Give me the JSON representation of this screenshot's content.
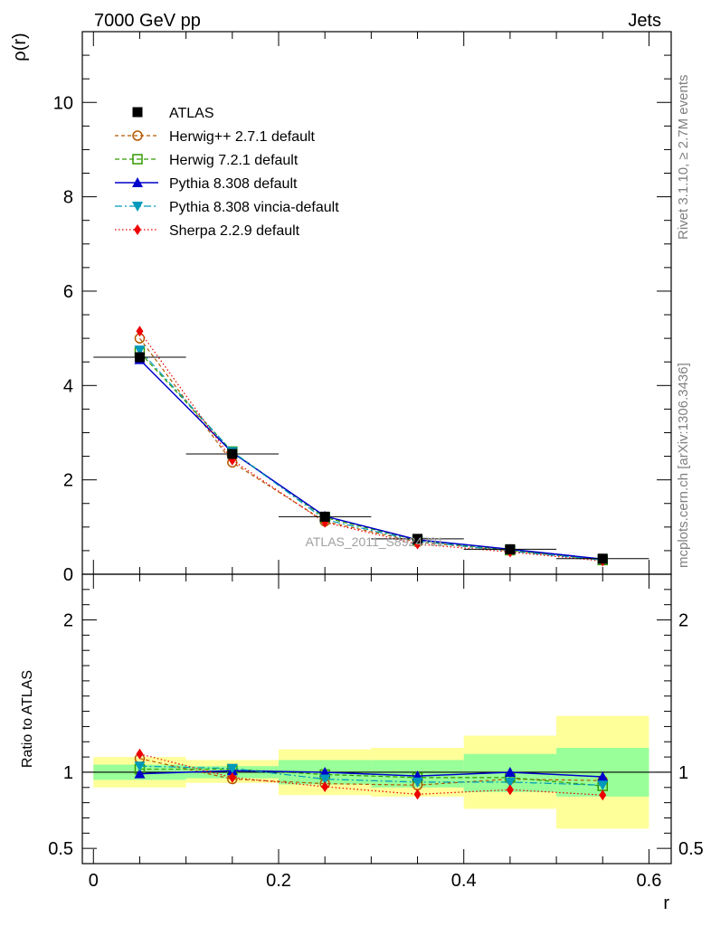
{
  "header": {
    "left": "7000 GeV pp",
    "right": "Jets"
  },
  "side_labels": {
    "rivet": "Rivet 3.1.10, ≥ 2.7M events",
    "mcplots": "mcplots.cern.ch [arXiv:1306.3436]"
  },
  "watermark": "ATLAS_2011_S8924791",
  "colors": {
    "atlas": "#000000",
    "herwigpp": "#b35900",
    "herwig7": "#339900",
    "pythia": "#0000cc",
    "vincia": "#0099bb",
    "sherpa": "#ee0000",
    "band_inner": "#99ff99",
    "band_outer": "#ffff99"
  },
  "chart_data": [
    {
      "type": "line",
      "panel": "main",
      "ylabel": "ρ(r)",
      "ylim": [
        0,
        11.5
      ],
      "yticks": [
        0,
        2,
        4,
        6,
        8,
        10
      ],
      "ytick_labels": [
        "0",
        "2",
        "4",
        "6",
        "8",
        "10"
      ],
      "x": [
        0.05,
        0.15,
        0.25,
        0.35,
        0.45,
        0.55
      ],
      "bin_edges": [
        0,
        0.1,
        0.2,
        0.3,
        0.4,
        0.5,
        0.6
      ],
      "legend_position": "top-left",
      "series": [
        {
          "name": "ATLAS",
          "key": "atlas",
          "values": [
            4.6,
            2.55,
            1.22,
            0.75,
            0.53,
            0.33
          ]
        },
        {
          "name": "Herwig++ 2.7.1 default",
          "key": "herwigpp",
          "values": [
            5.0,
            2.37,
            1.12,
            0.68,
            0.5,
            0.31
          ]
        },
        {
          "name": "Herwig 7.2.1 default",
          "key": "herwig7",
          "values": [
            4.7,
            2.6,
            1.2,
            0.72,
            0.51,
            0.3
          ]
        },
        {
          "name": "Pythia 8.308 default",
          "key": "pythia",
          "values": [
            4.55,
            2.58,
            1.23,
            0.73,
            0.53,
            0.32
          ]
        },
        {
          "name": "Pythia 8.308 vincia-default",
          "key": "vincia",
          "values": [
            4.75,
            2.6,
            1.16,
            0.7,
            0.49,
            0.3
          ]
        },
        {
          "name": "Sherpa 2.2.9 default",
          "key": "sherpa",
          "values": [
            5.15,
            2.42,
            1.1,
            0.64,
            0.47,
            0.28
          ]
        }
      ]
    },
    {
      "type": "line",
      "panel": "ratio",
      "ylabel": "Ratio to ATLAS",
      "xlabel": "r",
      "ylim": [
        0.4,
        2.3
      ],
      "yticks": [
        0.5,
        1,
        2
      ],
      "ytick_labels": [
        "0.5",
        "1",
        "2"
      ],
      "xlim": [
        -0.012,
        0.624
      ],
      "xticks": [
        0,
        0.2,
        0.4,
        0.6
      ],
      "xtick_labels": [
        "0",
        "0.2",
        "0.4",
        "0.6"
      ],
      "x": [
        0.05,
        0.15,
        0.25,
        0.35,
        0.45,
        0.55
      ],
      "bin_edges": [
        0,
        0.1,
        0.2,
        0.3,
        0.4,
        0.5,
        0.6
      ],
      "band_inner": [
        [
          0.95,
          1.05
        ],
        [
          0.96,
          1.04
        ],
        [
          0.92,
          1.08
        ],
        [
          0.9,
          1.08
        ],
        [
          0.87,
          1.12
        ],
        [
          0.84,
          1.16
        ]
      ],
      "band_outer": [
        [
          0.9,
          1.1
        ],
        [
          0.93,
          1.08
        ],
        [
          0.85,
          1.15
        ],
        [
          0.84,
          1.16
        ],
        [
          0.76,
          1.24
        ],
        [
          0.63,
          1.37
        ]
      ],
      "series": [
        {
          "name": "Herwig++ 2.7.1 default",
          "key": "herwigpp",
          "values": [
            1.09,
            0.955,
            0.925,
            0.915,
            0.955,
            0.945
          ]
        },
        {
          "name": "Herwig 7.2.1 default",
          "key": "herwig7",
          "values": [
            1.02,
            1.02,
            0.985,
            0.965,
            0.965,
            0.91
          ]
        },
        {
          "name": "Pythia 8.308 default",
          "key": "pythia",
          "values": [
            0.99,
            1.01,
            1.0,
            0.975,
            1.0,
            0.97
          ]
        },
        {
          "name": "Pythia 8.308 vincia-default",
          "key": "vincia",
          "values": [
            1.04,
            1.025,
            0.955,
            0.935,
            0.935,
            0.915
          ]
        },
        {
          "name": "Sherpa 2.2.9 default",
          "key": "sherpa",
          "values": [
            1.12,
            0.965,
            0.905,
            0.855,
            0.885,
            0.85
          ]
        }
      ]
    }
  ]
}
